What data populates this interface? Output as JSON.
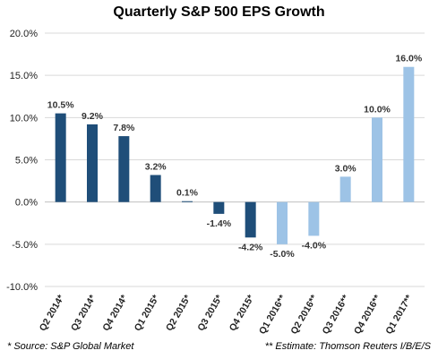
{
  "chart_data": {
    "type": "bar",
    "title": "Quarterly S&P 500 EPS Growth",
    "xlabel": "",
    "ylabel": "",
    "ylim": [
      -10,
      20
    ],
    "yticks": [
      "20.0%",
      "15.0%",
      "10.0%",
      "5.0%",
      "0.0%",
      "-5.0%",
      "-10.0%"
    ],
    "ytick_values": [
      20,
      15,
      10,
      5,
      0,
      -5,
      -10
    ],
    "grid": true,
    "legend": "none",
    "categories": [
      "Q2 2014*",
      "Q3 2014*",
      "Q4 2014*",
      "Q1 2015*",
      "Q2 2015*",
      "Q3 2015*",
      "Q4 2015*",
      "Q1 2016**",
      "Q2 2016**",
      "Q3 2016**",
      "Q4 2016**",
      "Q1 2017**"
    ],
    "values": [
      10.5,
      9.2,
      7.8,
      3.2,
      0.1,
      -1.4,
      -4.2,
      -5.0,
      -4.0,
      3.0,
      10.0,
      16.0
    ],
    "data_labels": [
      "10.5%",
      "9.2%",
      "7.8%",
      "3.2%",
      "0.1%",
      "-1.4%",
      "-4.2%",
      "-5.0%",
      "-4.0%",
      "3.0%",
      "10.0%",
      "16.0%"
    ],
    "bar_kind": [
      "actual",
      "actual",
      "actual",
      "actual",
      "actual",
      "actual",
      "actual",
      "estimate",
      "estimate",
      "estimate",
      "estimate",
      "estimate"
    ],
    "colors": {
      "actual": "#1f4e79",
      "estimate": "#9dc3e6",
      "grid": "#d9d9d9",
      "zero_line": "#bfbfbf"
    }
  },
  "footnotes": {
    "left": "* Source: S&P Global Market",
    "right": "** Estimate: Thomson Reuters I/B/E/S"
  }
}
